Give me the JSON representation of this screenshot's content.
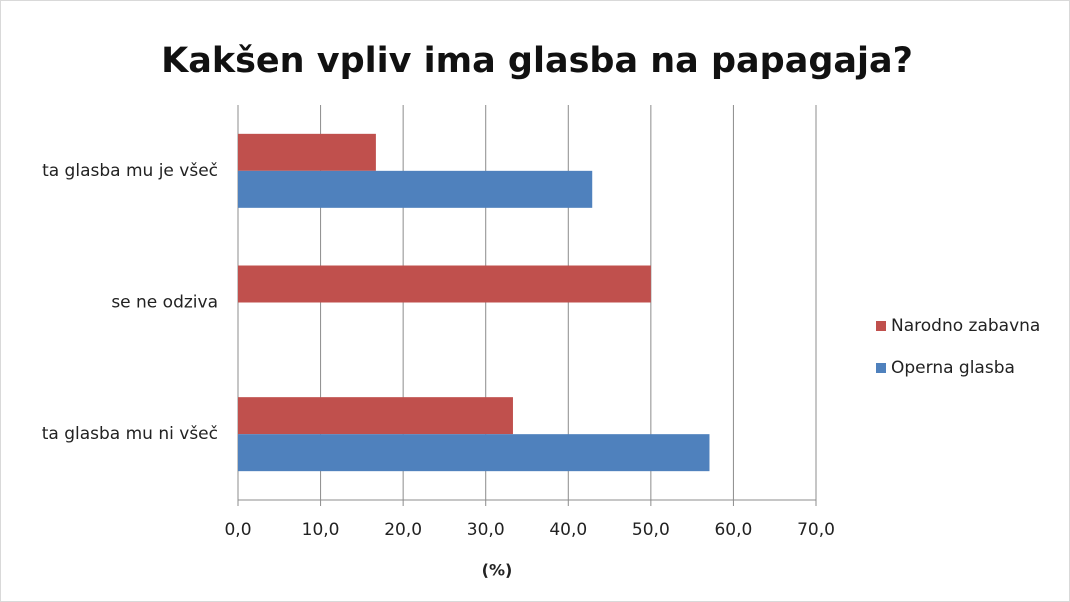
{
  "chart_data": {
    "type": "bar",
    "orientation": "horizontal",
    "title": "Kakšen vpliv ima glasba na papagaja?",
    "xlabel": "(%)",
    "categories": [
      "ta glasba mu je všeč",
      "se ne odziva",
      "ta glasba mu ni všeč"
    ],
    "series": [
      {
        "name": "Narodno zabavna",
        "color": "#c0504d",
        "values": [
          16.7,
          50.0,
          33.3
        ]
      },
      {
        "name": "Operna glasba",
        "color": "#4f81bd",
        "values": [
          42.9,
          0,
          57.1
        ]
      }
    ],
    "xlim": [
      0,
      70
    ],
    "xticks": [
      {
        "value": 0,
        "label": "0,0"
      },
      {
        "value": 10,
        "label": "10,0"
      },
      {
        "value": 20,
        "label": "20,0"
      },
      {
        "value": 30,
        "label": "30,0"
      },
      {
        "value": 40,
        "label": "40,0"
      },
      {
        "value": 50,
        "label": "50,0"
      },
      {
        "value": 60,
        "label": "60,0"
      },
      {
        "value": 70,
        "label": "70,0"
      }
    ],
    "grid": true,
    "legend": "right"
  }
}
